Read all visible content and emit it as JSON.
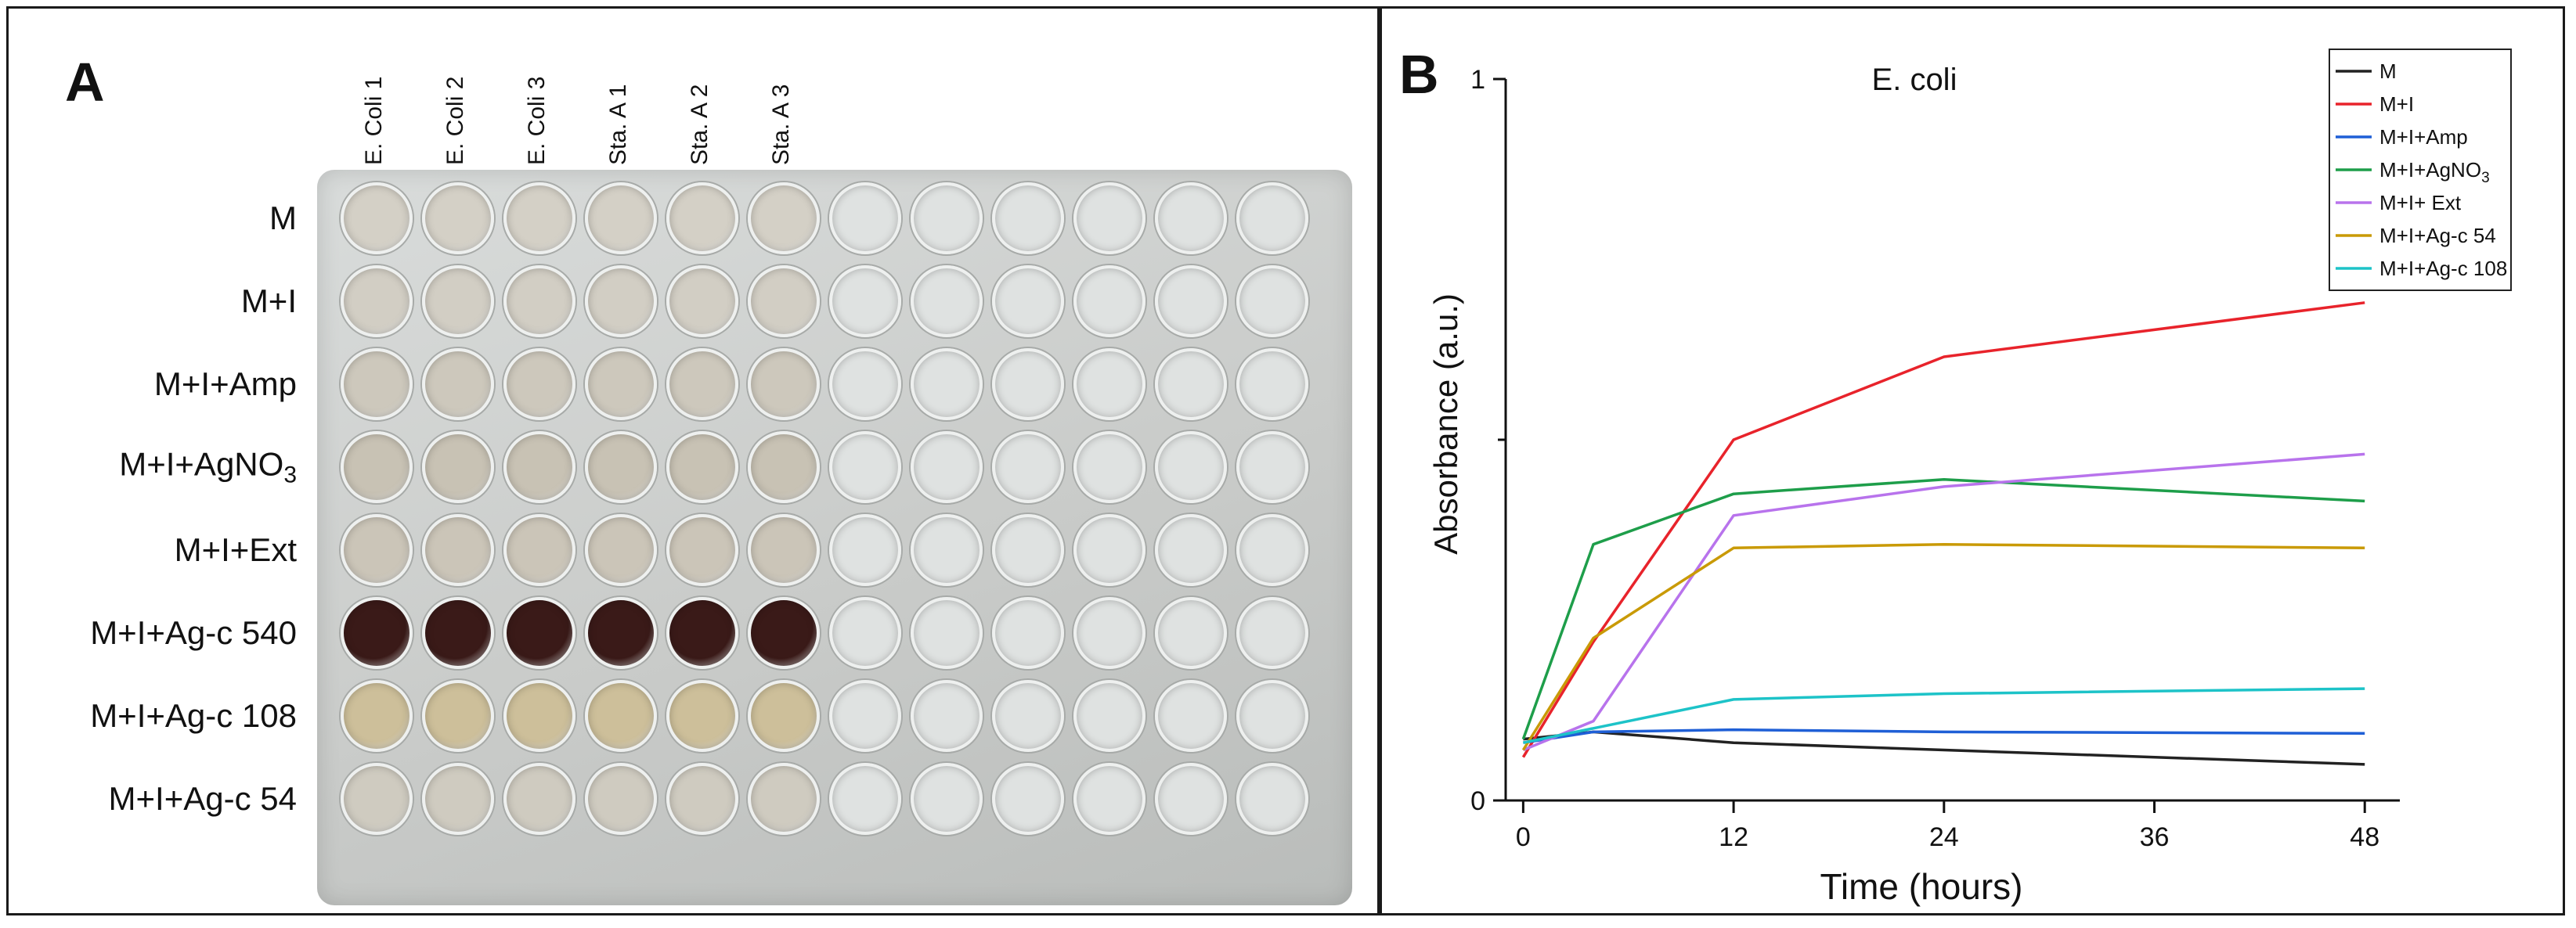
{
  "panel_a": {
    "letter": "A",
    "column_labels": [
      "E. Coli 1",
      "E. Coli 2",
      "E. Coli 3",
      "Sta. A 1",
      "Sta. A 2",
      "Sta. A 3"
    ],
    "row_labels": [
      {
        "text": "M",
        "sub": ""
      },
      {
        "text": "M+I",
        "sub": ""
      },
      {
        "text": "M+I+Amp",
        "sub": ""
      },
      {
        "text": "M+I+AgNO",
        "sub": "3"
      },
      {
        "text": "M+I+Ext",
        "sub": ""
      },
      {
        "text": "M+I+Ag-c 540",
        "sub": ""
      },
      {
        "text": "M+I+Ag-c 108",
        "sub": ""
      },
      {
        "text": "M+I+Ag-c  54",
        "sub": ""
      }
    ],
    "grid": {
      "rows": 8,
      "cols": 12,
      "filled_cols": 6
    },
    "row_well_colors": [
      "#d4d0c6",
      "#d2cec4",
      "#cdc8bc",
      "#c8c2b4",
      "#cbc5b8",
      "#3a1a18",
      "#cdbf9a",
      "#cfcbc0"
    ],
    "empty_well_color": "#dfe2e1"
  },
  "panel_b": {
    "letter": "B",
    "chart_data": {
      "type": "line",
      "title": "E. coli",
      "xlabel": "Time (hours)",
      "ylabel": "Absorbance (a.u.)",
      "xlim": [
        -1,
        50
      ],
      "ylim": [
        0,
        1
      ],
      "x_ticks": [
        0,
        12,
        24,
        36,
        48
      ],
      "y_tick_labels": [
        {
          "value": 0,
          "label": "0"
        },
        {
          "value": 1,
          "label": "1"
        }
      ],
      "y_minor_ticks": [
        0.5
      ],
      "legend_position": "top-right",
      "series": [
        {
          "name": "M",
          "sub": "",
          "color": "#222222",
          "x": [
            0,
            4,
            12,
            24,
            48
          ],
          "y": [
            0.085,
            0.095,
            0.08,
            0.07,
            0.05
          ]
        },
        {
          "name": "M+I",
          "sub": "",
          "color": "#e8232b",
          "x": [
            0,
            4,
            12,
            24,
            48
          ],
          "y": [
            0.06,
            0.22,
            0.5,
            0.615,
            0.69
          ]
        },
        {
          "name": "M+I+Amp",
          "sub": "",
          "color": "#1f5fd6",
          "x": [
            0,
            4,
            12,
            24,
            48
          ],
          "y": [
            0.08,
            0.095,
            0.098,
            0.095,
            0.093
          ]
        },
        {
          "name": "M+I+AgNO",
          "sub": "3",
          "color": "#1e9e4a",
          "x": [
            0,
            4,
            12,
            24,
            48
          ],
          "y": [
            0.085,
            0.355,
            0.425,
            0.445,
            0.415
          ]
        },
        {
          "name": "M+I+ Ext",
          "sub": "",
          "color": "#b873ec",
          "x": [
            0,
            4,
            12,
            24,
            48
          ],
          "y": [
            0.07,
            0.11,
            0.395,
            0.435,
            0.48
          ]
        },
        {
          "name": "M+I+Ag-c 54",
          "sub": "",
          "color": "#c99a06",
          "x": [
            0,
            4,
            12,
            24,
            48
          ],
          "y": [
            0.07,
            0.225,
            0.35,
            0.355,
            0.35
          ]
        },
        {
          "name": "M+I+Ag-c 108",
          "sub": "",
          "color": "#1dc3c8",
          "x": [
            0,
            4,
            12,
            24,
            48
          ],
          "y": [
            0.08,
            0.1,
            0.14,
            0.148,
            0.155
          ]
        }
      ]
    }
  }
}
